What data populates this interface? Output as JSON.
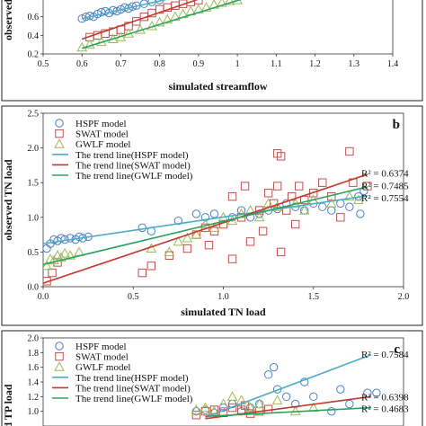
{
  "chart_data": [
    {
      "id": "a",
      "type": "scatter",
      "panel_label": "",
      "xlabel": "simulated  streamflow",
      "ylabel": "observed",
      "xlim": [
        0.5,
        1.4
      ],
      "ylim": [
        0.2,
        0.8
      ],
      "x_ticks": [
        "0.5",
        "0.6",
        "0.7",
        "0.8",
        "0.9",
        "1",
        "1.1",
        "1.2",
        "1.3",
        "1.4"
      ],
      "y_ticks": [
        "0.2",
        "0.4",
        "0.6"
      ],
      "legend": [],
      "r2_labels": [],
      "colors": {
        "HSPF": "#4a7fc1",
        "SWAT": "#c0504d",
        "GWLF": "#9bbb59",
        "trend_HSPF": "#4bacc6",
        "trend_SWAT": "#c0392b",
        "trend_GWLF": "#2ca25f"
      },
      "series": [
        {
          "model": "HSPF",
          "marker": "circle",
          "points": [
            [
              0.6,
              0.58
            ],
            [
              0.61,
              0.6
            ],
            [
              0.62,
              0.61
            ],
            [
              0.63,
              0.6
            ],
            [
              0.64,
              0.63
            ],
            [
              0.65,
              0.65
            ],
            [
              0.66,
              0.66
            ],
            [
              0.67,
              0.64
            ],
            [
              0.68,
              0.67
            ],
            [
              0.69,
              0.66
            ],
            [
              0.7,
              0.68
            ],
            [
              0.71,
              0.7
            ],
            [
              0.72,
              0.69
            ],
            [
              0.73,
              0.71
            ],
            [
              0.74,
              0.72
            ],
            [
              0.76,
              0.74
            ],
            [
              0.78,
              0.76
            ],
            [
              0.8,
              0.78
            ]
          ]
        },
        {
          "model": "SWAT",
          "marker": "square",
          "points": [
            [
              0.62,
              0.38
            ],
            [
              0.64,
              0.4
            ],
            [
              0.66,
              0.42
            ],
            [
              0.68,
              0.44
            ],
            [
              0.7,
              0.46
            ],
            [
              0.72,
              0.5
            ],
            [
              0.74,
              0.55
            ],
            [
              0.76,
              0.6
            ],
            [
              0.78,
              0.64
            ],
            [
              0.8,
              0.68
            ],
            [
              0.82,
              0.7
            ],
            [
              0.84,
              0.72
            ],
            [
              0.86,
              0.74
            ],
            [
              0.88,
              0.76
            ],
            [
              0.9,
              0.78
            ]
          ]
        },
        {
          "model": "GWLF",
          "marker": "triangle",
          "points": [
            [
              0.6,
              0.27
            ],
            [
              0.62,
              0.3
            ],
            [
              0.65,
              0.33
            ],
            [
              0.68,
              0.36
            ],
            [
              0.7,
              0.38
            ],
            [
              0.72,
              0.42
            ],
            [
              0.75,
              0.46
            ],
            [
              0.78,
              0.5
            ],
            [
              0.8,
              0.54
            ],
            [
              0.82,
              0.57
            ],
            [
              0.84,
              0.6
            ],
            [
              0.86,
              0.63
            ],
            [
              0.88,
              0.66
            ],
            [
              0.9,
              0.68
            ],
            [
              0.92,
              0.7
            ],
            [
              0.94,
              0.73
            ],
            [
              0.96,
              0.75
            ],
            [
              0.98,
              0.77
            ],
            [
              1.0,
              0.78
            ]
          ]
        }
      ],
      "trend_lines": [
        {
          "model": "HSPF",
          "x": [
            0.6,
            0.82
          ],
          "y": [
            0.58,
            0.79
          ]
        },
        {
          "model": "SWAT",
          "x": [
            0.6,
            0.9
          ],
          "y": [
            0.36,
            0.79
          ]
        },
        {
          "model": "GWLF",
          "x": [
            0.6,
            1.02
          ],
          "y": [
            0.26,
            0.8
          ]
        }
      ]
    },
    {
      "id": "b",
      "type": "scatter",
      "panel_label": "b",
      "xlabel": "simulated TN load",
      "ylabel": "observed TN load",
      "xlim": [
        0,
        2
      ],
      "ylim": [
        0,
        2.5
      ],
      "x_ticks": [
        "0.0",
        "0.5",
        "1.0",
        "1.5",
        "2.0"
      ],
      "y_ticks": [
        "0.0",
        "0.5",
        "1.0",
        "1.5",
        "2.0",
        "2.5"
      ],
      "legend": [
        "HSPF model",
        "SWAT model",
        "GWLF model",
        "The trend line(HSPF model)",
        "The trend line(SWAT model)",
        "The trend line(GWLF model)"
      ],
      "r2_labels": [
        {
          "text": "R² = 0.6374",
          "x": 1.82,
          "y": 1.64
        },
        {
          "text": "R² = 0.7485",
          "x": 1.82,
          "y": 1.46
        },
        {
          "text": "R² = 0.7554",
          "x": 1.82,
          "y": 1.28
        }
      ],
      "colors": {
        "HSPF": "#4a7fc1",
        "SWAT": "#c0504d",
        "GWLF": "#9bbb59",
        "trend_HSPF": "#4bacc6",
        "trend_SWAT": "#c0392b",
        "trend_GWLF": "#2ca25f"
      },
      "series": [
        {
          "model": "HSPF",
          "marker": "circle",
          "points": [
            [
              0.02,
              0.55
            ],
            [
              0.04,
              0.62
            ],
            [
              0.06,
              0.68
            ],
            [
              0.08,
              0.66
            ],
            [
              0.1,
              0.7
            ],
            [
              0.12,
              0.68
            ],
            [
              0.15,
              0.7
            ],
            [
              0.18,
              0.68
            ],
            [
              0.2,
              0.72
            ],
            [
              0.22,
              0.7
            ],
            [
              0.25,
              0.72
            ],
            [
              0.55,
              0.85
            ],
            [
              0.6,
              0.8
            ],
            [
              0.75,
              0.95
            ],
            [
              0.85,
              1.05
            ],
            [
              0.9,
              1.0
            ],
            [
              0.95,
              1.05
            ],
            [
              1.05,
              1.0
            ],
            [
              1.1,
              1.1
            ],
            [
              1.15,
              1.0
            ],
            [
              1.2,
              1.05
            ],
            [
              1.25,
              1.1
            ],
            [
              1.3,
              1.12
            ],
            [
              1.35,
              1.2
            ],
            [
              1.4,
              1.15
            ],
            [
              1.45,
              1.1
            ],
            [
              1.5,
              1.2
            ],
            [
              1.55,
              1.15
            ],
            [
              1.6,
              1.1
            ],
            [
              1.65,
              1.2
            ],
            [
              1.7,
              1.15
            ],
            [
              1.75,
              1.3
            ],
            [
              1.78,
              1.38
            ],
            [
              1.76,
              1.05
            ]
          ]
        },
        {
          "model": "SWAT",
          "marker": "square",
          "points": [
            [
              0.02,
              0.08
            ],
            [
              0.05,
              0.2
            ],
            [
              0.08,
              0.35
            ],
            [
              0.55,
              0.2
            ],
            [
              0.6,
              0.3
            ],
            [
              0.7,
              0.45
            ],
            [
              0.8,
              0.55
            ],
            [
              0.85,
              0.75
            ],
            [
              0.9,
              0.85
            ],
            [
              0.92,
              0.6
            ],
            [
              0.95,
              0.8
            ],
            [
              1.0,
              0.9
            ],
            [
              1.05,
              0.4
            ],
            [
              1.1,
              1.0
            ],
            [
              1.15,
              0.65
            ],
            [
              1.2,
              1.1
            ],
            [
              1.22,
              0.8
            ],
            [
              1.25,
              1.35
            ],
            [
              1.28,
              1.2
            ],
            [
              1.3,
              1.45
            ],
            [
              1.32,
              0.5
            ],
            [
              1.35,
              1.1
            ],
            [
              1.38,
              1.3
            ],
            [
              1.4,
              0.9
            ],
            [
              1.42,
              1.45
            ],
            [
              1.45,
              1.25
            ],
            [
              1.5,
              1.35
            ],
            [
              1.55,
              1.5
            ],
            [
              1.6,
              1.3
            ],
            [
              1.65,
              1.0
            ],
            [
              1.7,
              1.95
            ],
            [
              1.72,
              1.5
            ],
            [
              1.8,
              1.45
            ],
            [
              1.3,
              1.92
            ],
            [
              1.32,
              1.88
            ],
            [
              1.12,
              1.45
            ],
            [
              1.05,
              1.3
            ]
          ]
        },
        {
          "model": "GWLF",
          "marker": "triangle",
          "points": [
            [
              0.02,
              0.3
            ],
            [
              0.04,
              0.4
            ],
            [
              0.06,
              0.38
            ],
            [
              0.08,
              0.45
            ],
            [
              0.1,
              0.42
            ],
            [
              0.12,
              0.48
            ],
            [
              0.15,
              0.45
            ],
            [
              0.2,
              0.5
            ],
            [
              0.6,
              0.55
            ],
            [
              0.7,
              0.5
            ],
            [
              0.75,
              0.65
            ],
            [
              0.8,
              0.7
            ],
            [
              0.85,
              0.75
            ],
            [
              0.9,
              0.9
            ],
            [
              0.95,
              0.85
            ],
            [
              1.0,
              1.0
            ],
            [
              1.05,
              0.95
            ],
            [
              1.1,
              1.05
            ],
            [
              1.15,
              1.1
            ],
            [
              1.2,
              1.0
            ],
            [
              1.25,
              1.2
            ],
            [
              1.3,
              1.15
            ],
            [
              1.4,
              1.2
            ],
            [
              1.45,
              1.1
            ],
            [
              1.5,
              1.25
            ],
            [
              1.6,
              1.2
            ],
            [
              1.7,
              1.3
            ],
            [
              1.75,
              1.25
            ]
          ]
        }
      ],
      "trend_lines": [
        {
          "model": "HSPF",
          "x": [
            0.0,
            1.8
          ],
          "y": [
            0.62,
            1.31
          ]
        },
        {
          "model": "SWAT",
          "x": [
            0.0,
            1.8
          ],
          "y": [
            0.05,
            1.62
          ]
        },
        {
          "model": "GWLF",
          "x": [
            0.0,
            1.8
          ],
          "y": [
            0.32,
            1.44
          ]
        }
      ]
    },
    {
      "id": "c",
      "type": "scatter",
      "panel_label": "c",
      "xlabel": "",
      "ylabel": "d TP load",
      "xlim": [
        0,
        2
      ],
      "ylim": [
        0.8,
        2.0
      ],
      "x_ticks": [],
      "y_ticks": [
        "1.0",
        "1.2",
        "1.4",
        "1.6",
        "1.8",
        "2.0"
      ],
      "legend": [
        "HSPF model",
        "SWAT model",
        "GWLF model",
        "The trend line(HSPF model)",
        "The trend line(SWAT model)",
        "The trend line(GWLF model)"
      ],
      "r2_labels": [
        {
          "text": "R² = 0.7584",
          "x": 1.83,
          "y": 1.78
        },
        {
          "text": "R² = 0.6398",
          "x": 1.83,
          "y": 1.2
        },
        {
          "text": "R² = 0.4683",
          "x": 1.83,
          "y": 1.04
        }
      ],
      "colors": {
        "HSPF": "#4a7fc1",
        "SWAT": "#c0504d",
        "GWLF": "#9bbb59",
        "trend_HSPF": "#4bacc6",
        "trend_SWAT": "#c0392b",
        "trend_GWLF": "#2ca25f"
      },
      "series": [
        {
          "model": "HSPF",
          "marker": "circle",
          "points": [
            [
              0.85,
              1.0
            ],
            [
              0.9,
              1.02
            ],
            [
              0.95,
              0.98
            ],
            [
              1.0,
              1.05
            ],
            [
              1.05,
              1.1
            ],
            [
              1.1,
              1.0
            ],
            [
              1.15,
              1.05
            ],
            [
              1.2,
              1.1
            ],
            [
              1.25,
              1.5
            ],
            [
              1.28,
              1.6
            ],
            [
              1.3,
              1.3
            ],
            [
              1.35,
              1.2
            ],
            [
              1.4,
              1.1
            ],
            [
              1.45,
              1.4
            ],
            [
              1.5,
              1.2
            ],
            [
              1.6,
              1.0
            ],
            [
              1.65,
              1.3
            ],
            [
              1.7,
              1.1
            ],
            [
              1.8,
              1.25
            ],
            [
              1.85,
              1.25
            ]
          ]
        },
        {
          "model": "SWAT",
          "marker": "square",
          "points": [
            [
              0.85,
              0.95
            ],
            [
              0.9,
              1.0
            ],
            [
              0.95,
              1.02
            ],
            [
              1.0,
              0.98
            ],
            [
              1.05,
              1.05
            ],
            [
              1.1,
              1.02
            ],
            [
              1.12,
              1.08
            ],
            [
              1.15,
              0.97
            ],
            [
              1.2,
              1.0
            ],
            [
              1.25,
              1.03
            ]
          ]
        },
        {
          "model": "GWLF",
          "marker": "triangle",
          "points": [
            [
              0.85,
              1.02
            ],
            [
              0.9,
              1.05
            ],
            [
              0.95,
              1.0
            ],
            [
              1.0,
              1.1
            ],
            [
              1.05,
              1.2
            ],
            [
              1.1,
              1.15
            ],
            [
              1.15,
              1.05
            ],
            [
              1.2,
              1.1
            ],
            [
              1.3,
              1.15
            ],
            [
              1.4,
              1.0
            ],
            [
              1.5,
              1.05
            ]
          ]
        }
      ],
      "trend_lines": [
        {
          "model": "HSPF",
          "x": [
            0.9,
            1.82
          ],
          "y": [
            0.92,
            1.77
          ]
        },
        {
          "model": "SWAT",
          "x": [
            0.9,
            1.82
          ],
          "y": [
            0.9,
            1.2
          ]
        },
        {
          "model": "GWLF",
          "x": [
            0.9,
            1.82
          ],
          "y": [
            0.93,
            1.05
          ]
        }
      ]
    }
  ]
}
